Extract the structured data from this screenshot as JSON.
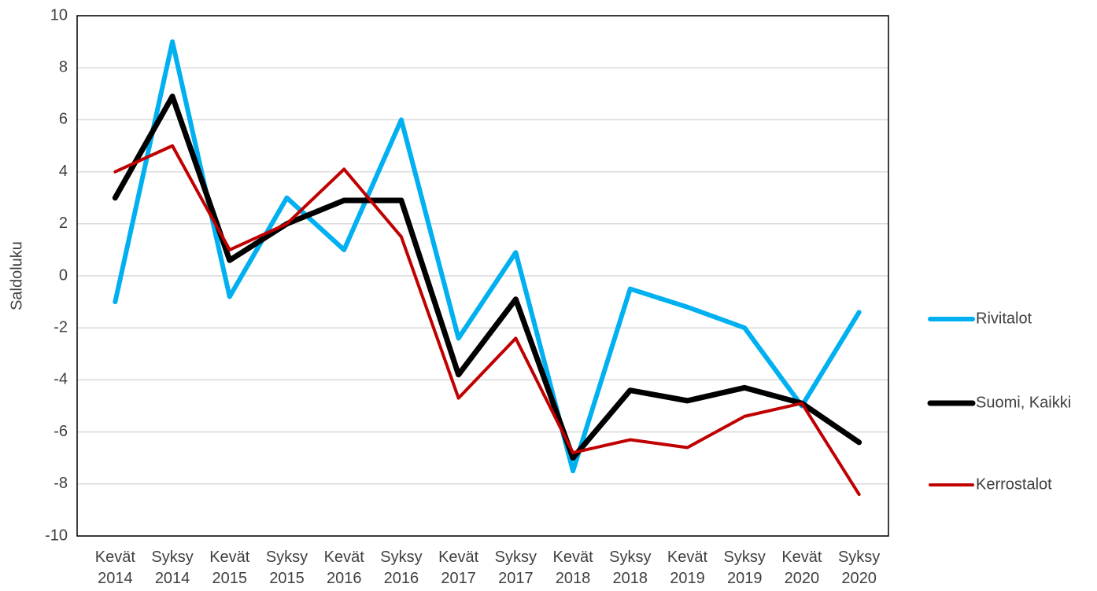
{
  "chart_data": {
    "type": "line",
    "y_label": "Saldoluku",
    "categories": [
      "Kevät 2014",
      "Syksy 2014",
      "Kevät 2015",
      "Syksy 2015",
      "Kevät 2016",
      "Syksy 2016",
      "Kevät 2017",
      "Syksy 2017",
      "Kevät 2018",
      "Syksy 2018",
      "Kevät 2019",
      "Syksy 2019",
      "Kevät 2020",
      "Syksy 2020"
    ],
    "series": [
      {
        "name": "Rivitalot",
        "color": "#00b0f0",
        "values": [
          -1,
          9,
          -0.8,
          3,
          1,
          6,
          -2.4,
          0.9,
          -7.5,
          -0.5,
          -1.2,
          -2,
          -5,
          -1.4
        ]
      },
      {
        "name": "Suomi, Kaikki",
        "color": "#000000",
        "values": [
          3,
          6.9,
          0.6,
          2,
          2.9,
          2.9,
          -3.8,
          -0.9,
          -7,
          -4.4,
          -4.8,
          -4.3,
          -4.9,
          -6.4
        ]
      },
      {
        "name": "Kerrostalot",
        "color": "#c00000",
        "values": [
          4,
          5,
          1,
          2,
          4.1,
          1.5,
          -4.7,
          -2.4,
          -6.8,
          -6.3,
          -6.6,
          -5.4,
          -4.9,
          -8.4
        ]
      }
    ],
    "ylim": [
      -10,
      10
    ],
    "yticks": [
      -10,
      -8,
      -6,
      -4,
      -2,
      0,
      2,
      4,
      6,
      8,
      10
    ],
    "grid": true,
    "legend": "right"
  }
}
